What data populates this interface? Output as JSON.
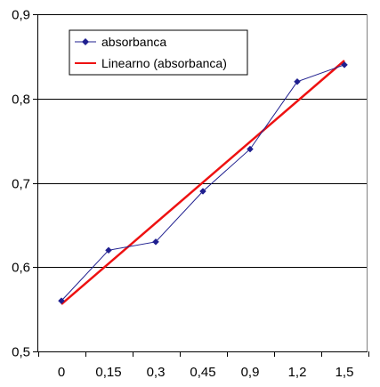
{
  "chart_data": {
    "type": "line",
    "categories": [
      "0",
      "0,15",
      "0,3",
      "0,45",
      "0,9",
      "1,2",
      "1,5"
    ],
    "series": [
      {
        "name": "absorbanca",
        "values": [
          0.56,
          0.62,
          0.63,
          0.69,
          0.74,
          0.82,
          0.84
        ],
        "color": "#1f1f8f",
        "marker": "diamond"
      }
    ],
    "trendline": {
      "name": "Linearno (absorbanca)",
      "type": "linear",
      "start": 0.556,
      "end": 0.845,
      "color": "#ee1111"
    },
    "ylim": [
      0.5,
      0.9
    ],
    "yticks": [
      0.5,
      0.6,
      0.7,
      0.8,
      0.9
    ],
    "ytick_labels": [
      "0,5",
      "0,6",
      "0,7",
      "0,8",
      "0,9"
    ],
    "title": "",
    "xlabel": "",
    "ylabel": "",
    "grid": "horizontal",
    "legend_position": "top-left",
    "plot_background": "#ffffff",
    "gridline_color": "#000000"
  }
}
